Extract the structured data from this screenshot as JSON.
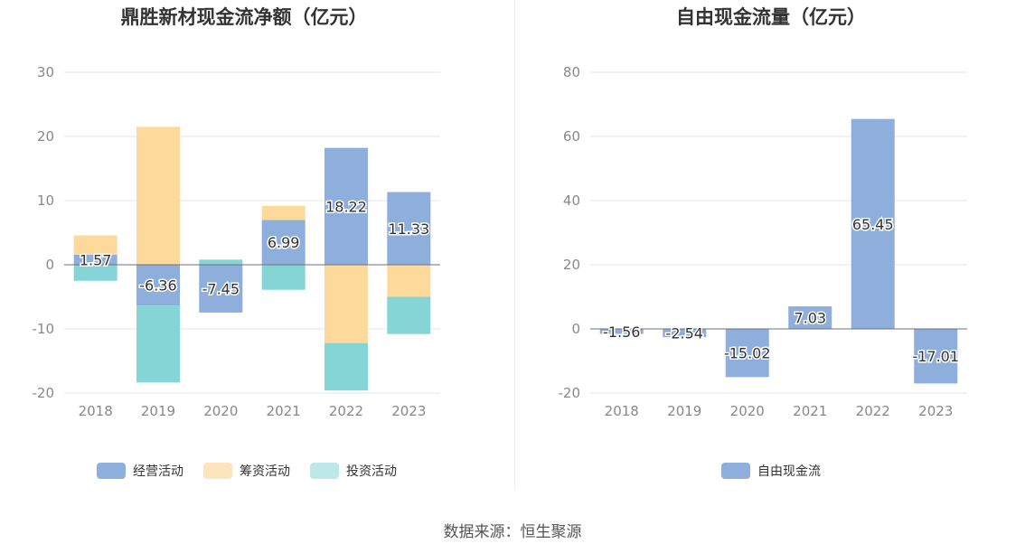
{
  "chart_data": [
    {
      "type": "bar",
      "stacked": true,
      "title": "鼎胜新材现金流净额（亿元）",
      "categories": [
        "2018",
        "2019",
        "2020",
        "2021",
        "2022",
        "2023"
      ],
      "series": [
        {
          "name": "经营活动",
          "values": [
            1.57,
            -6.36,
            -7.45,
            6.99,
            18.22,
            11.33
          ],
          "labels": [
            "1.57",
            "-6.36",
            "-7.45",
            "6.99",
            "18.22",
            "11.33"
          ]
        },
        {
          "name": "筹资活动",
          "values": [
            3.0,
            21.5,
            0.0,
            2.2,
            -12.2,
            -5.0
          ]
        },
        {
          "name": "投资活动",
          "values": [
            -2.5,
            -12.0,
            0.8,
            -3.9,
            -7.4,
            -5.8
          ]
        }
      ],
      "yticks": [
        "30",
        "20",
        "10",
        "0",
        "-10",
        "-20"
      ],
      "ylim": [
        -20,
        30
      ],
      "grid": true,
      "legend": "bottom"
    },
    {
      "type": "bar",
      "title": "自由现金流量（亿元）",
      "categories": [
        "2018",
        "2019",
        "2020",
        "2021",
        "2022",
        "2023"
      ],
      "series": [
        {
          "name": "自由现金流",
          "values": [
            -1.56,
            -2.54,
            -15.02,
            7.03,
            65.45,
            -17.01
          ],
          "labels": [
            "-1.56",
            "-2.54",
            "-15.02",
            "7.03",
            "65.45",
            "-17.01"
          ]
        }
      ],
      "yticks": [
        "80",
        "60",
        "40",
        "20",
        "0",
        "-20"
      ],
      "ylim": [
        -20,
        80
      ],
      "grid": true,
      "legend": "bottom"
    }
  ],
  "colors": [
    "#8eaedc",
    "#fdd99b",
    "#85d5d7"
  ],
  "legend_colors": [
    "#8eaedc",
    "#fde4bd",
    "#bde8ea"
  ],
  "source": "数据来源：恒生聚源"
}
